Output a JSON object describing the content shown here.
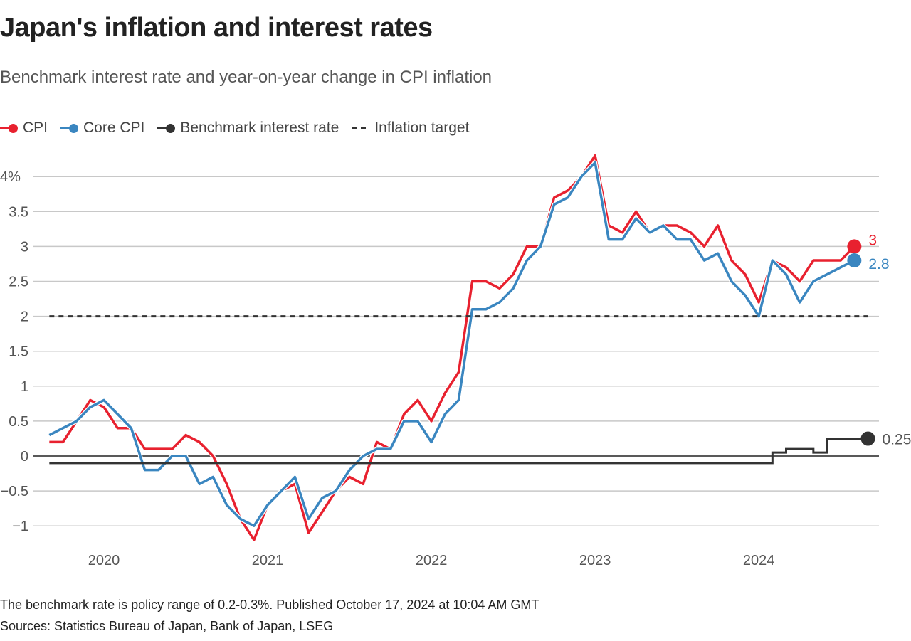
{
  "header": {
    "title": "Japan's inflation and interest rates",
    "subtitle": "Benchmark interest rate and year-on-year change in CPI inflation"
  },
  "legend": [
    {
      "label": "CPI",
      "color": "#e8212f"
    },
    {
      "label": "Core CPI",
      "color": "#3a86c0"
    },
    {
      "label": "Benchmark interest rate",
      "color": "#333333"
    },
    {
      "label": "Inflation target",
      "color": "#333333"
    }
  ],
  "footer": {
    "note": "The benchmark rate is policy range of 0.2-0.3%. Published October 17, 2024 at 10:04 AM GMT",
    "sources": "Sources: Statistics Bureau of Japan, Bank of Japan, LSEG"
  },
  "chart_data": {
    "type": "line",
    "title": "Japan's inflation and interest rates",
    "subtitle": "Benchmark interest rate and year-on-year change in CPI inflation",
    "xlabel": "",
    "ylabel": "",
    "ylim": [
      -1.25,
      4.3
    ],
    "grid": true,
    "legend_position": "top-left",
    "y_ticks": [
      {
        "value": 4,
        "label": "4%"
      },
      {
        "value": 3.5,
        "label": "3.5"
      },
      {
        "value": 3,
        "label": "3"
      },
      {
        "value": 2.5,
        "label": "2.5"
      },
      {
        "value": 2,
        "label": "2"
      },
      {
        "value": 1.5,
        "label": "1.5"
      },
      {
        "value": 1,
        "label": "1"
      },
      {
        "value": 0.5,
        "label": "0.5"
      },
      {
        "value": 0,
        "label": "0"
      },
      {
        "value": -0.5,
        "label": "−0.5"
      },
      {
        "value": -1,
        "label": "−1"
      }
    ],
    "x_ticks": [
      {
        "date": "2020-01",
        "label": "2020"
      },
      {
        "date": "2021-01",
        "label": "2021"
      },
      {
        "date": "2022-01",
        "label": "2022"
      },
      {
        "date": "2023-01",
        "label": "2023"
      },
      {
        "date": "2024-01",
        "label": "2024"
      }
    ],
    "start_month": "2019-09",
    "series": [
      {
        "name": "CPI",
        "color": "#e8212f",
        "end_label": "3",
        "values": [
          0.2,
          0.2,
          0.5,
          0.8,
          0.7,
          0.4,
          0.4,
          0.1,
          0.1,
          0.1,
          0.3,
          0.2,
          0.0,
          -0.4,
          -0.9,
          -1.2,
          -0.7,
          -0.5,
          -0.4,
          -1.1,
          -0.8,
          -0.5,
          -0.3,
          -0.4,
          0.2,
          0.1,
          0.6,
          0.8,
          0.5,
          0.9,
          1.2,
          2.5,
          2.5,
          2.4,
          2.6,
          3.0,
          3.0,
          3.7,
          3.8,
          4.0,
          4.3,
          3.3,
          3.2,
          3.5,
          3.2,
          3.3,
          3.3,
          3.2,
          3.0,
          3.3,
          2.8,
          2.6,
          2.2,
          2.8,
          2.7,
          2.5,
          2.8,
          2.8,
          2.8,
          3.0
        ]
      },
      {
        "name": "Core CPI",
        "color": "#3a86c0",
        "end_label": "2.8",
        "values": [
          0.3,
          0.4,
          0.5,
          0.7,
          0.8,
          0.6,
          0.4,
          -0.2,
          -0.2,
          0.0,
          0.0,
          -0.4,
          -0.3,
          -0.7,
          -0.9,
          -1.0,
          -0.7,
          -0.5,
          -0.3,
          -0.9,
          -0.6,
          -0.5,
          -0.2,
          0.0,
          0.1,
          0.1,
          0.5,
          0.5,
          0.2,
          0.6,
          0.8,
          2.1,
          2.1,
          2.2,
          2.4,
          2.8,
          3.0,
          3.6,
          3.7,
          4.0,
          4.2,
          3.1,
          3.1,
          3.4,
          3.2,
          3.3,
          3.1,
          3.1,
          2.8,
          2.9,
          2.5,
          2.3,
          2.0,
          2.8,
          2.6,
          2.2,
          2.5,
          2.6,
          2.7,
          2.8
        ]
      },
      {
        "name": "Benchmark interest rate",
        "color": "#333333",
        "end_label": "0.25",
        "type": "step",
        "steps": [
          {
            "from": "2019-09",
            "value": -0.1
          },
          {
            "from": "2024-02",
            "value": 0.05
          },
          {
            "from": "2024-03",
            "value": 0.1
          },
          {
            "from": "2024-05",
            "value": 0.05
          },
          {
            "from": "2024-06",
            "value": 0.25
          }
        ],
        "end": "2024-09"
      },
      {
        "name": "Inflation target",
        "color": "#333333",
        "type": "hline",
        "value": 2,
        "dashed": true,
        "from": "2019-09",
        "end": "2024-09"
      }
    ]
  }
}
